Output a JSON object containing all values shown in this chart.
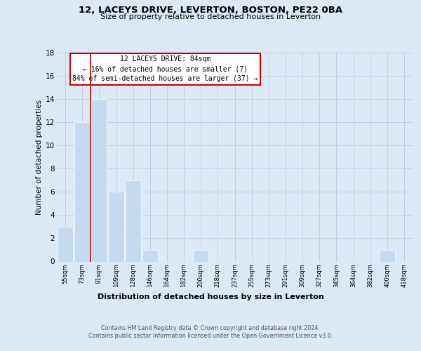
{
  "title1": "12, LACEYS DRIVE, LEVERTON, BOSTON, PE22 0BA",
  "title2": "Size of property relative to detached houses in Leverton",
  "xlabel": "Distribution of detached houses by size in Leverton",
  "ylabel": "Number of detached properties",
  "bin_labels": [
    "55sqm",
    "73sqm",
    "91sqm",
    "109sqm",
    "128sqm",
    "146sqm",
    "164sqm",
    "182sqm",
    "200sqm",
    "218sqm",
    "237sqm",
    "255sqm",
    "273sqm",
    "291sqm",
    "309sqm",
    "327sqm",
    "345sqm",
    "364sqm",
    "382sqm",
    "400sqm",
    "418sqm"
  ],
  "bar_heights": [
    3,
    12,
    14,
    6,
    7,
    1,
    0,
    0,
    1,
    0,
    0,
    0,
    0,
    0,
    0,
    0,
    0,
    0,
    0,
    1,
    0
  ],
  "bar_color": "#c5d9f0",
  "bar_edge_color": "#ffffff",
  "grid_color": "#c0cfe0",
  "annotation_line1": "12 LACEYS DRIVE: 84sqm",
  "annotation_line2": "← 16% of detached houses are smaller (7)",
  "annotation_line3": "84% of semi-detached houses are larger (37) →",
  "annotation_box_color": "#ffffff",
  "annotation_box_edge": "#cc0000",
  "property_line_color": "#cc0000",
  "ylim": [
    0,
    18
  ],
  "yticks": [
    0,
    2,
    4,
    6,
    8,
    10,
    12,
    14,
    16,
    18
  ],
  "footer1": "Contains HM Land Registry data © Crown copyright and database right 2024.",
  "footer2": "Contains public sector information licensed under the Open Government Licence v3.0.",
  "bg_color": "#dce9f5"
}
